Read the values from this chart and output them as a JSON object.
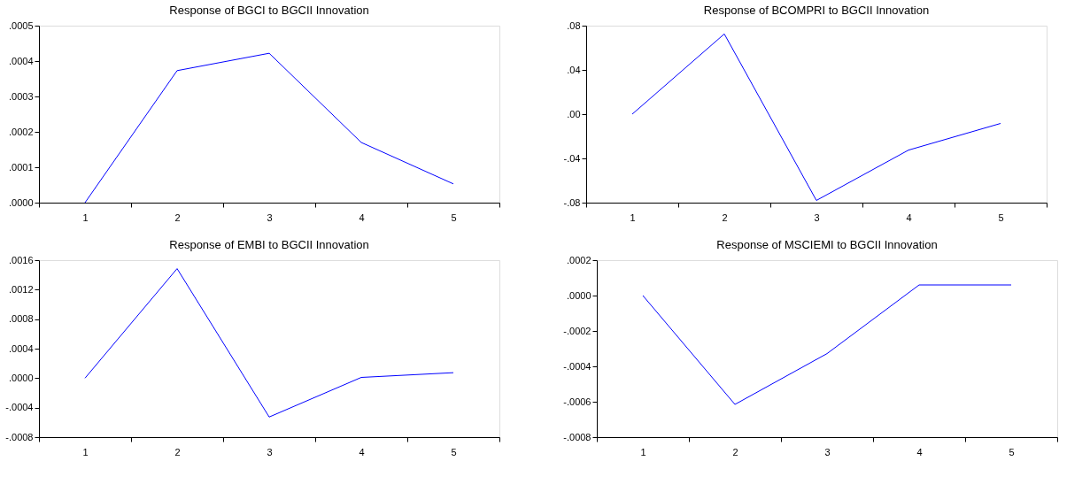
{
  "chart_data": [
    {
      "type": "line",
      "title": "Response of BGCI to BGCII Innovation",
      "categories": [
        "1",
        "2",
        "3",
        "4",
        "5"
      ],
      "series": [
        {
          "color": "#0000ff",
          "values": [
            0.0,
            0.000373,
            0.000422,
            0.00017,
            5.3e-05
          ]
        }
      ],
      "ylim": [
        0,
        0.0005
      ],
      "yticks": [
        {
          "value": 0,
          "label": ".0000"
        },
        {
          "value": 0.0001,
          "label": ".0001"
        },
        {
          "value": 0.0002,
          "label": ".0002"
        },
        {
          "value": 0.0003,
          "label": ".0003"
        },
        {
          "value": 0.0004,
          "label": ".0004"
        },
        {
          "value": 0.0005,
          "label": ".0005"
        }
      ],
      "grid": false,
      "legend": false,
      "marker": "none",
      "line_style": "solid"
    },
    {
      "type": "line",
      "title": "Response of BCOMPRI to BGCII Innovation",
      "categories": [
        "1",
        "2",
        "3",
        "4",
        "5"
      ],
      "series": [
        {
          "color": "#0000ff",
          "values": [
            0.0,
            0.0725,
            -0.078,
            -0.0325,
            -0.0084
          ]
        }
      ],
      "ylim": [
        -0.08,
        0.08
      ],
      "yticks": [
        {
          "value": -0.08,
          "label": "-.08"
        },
        {
          "value": -0.04,
          "label": "-.04"
        },
        {
          "value": 0,
          "label": ".00"
        },
        {
          "value": 0.04,
          "label": ".04"
        },
        {
          "value": 0.08,
          "label": ".08"
        }
      ],
      "grid": false,
      "legend": false,
      "marker": "none",
      "line_style": "solid"
    },
    {
      "type": "line",
      "title": "Response of EMBI to BGCII Innovation",
      "categories": [
        "1",
        "2",
        "3",
        "4",
        "5"
      ],
      "series": [
        {
          "color": "#0000ff",
          "values": [
            0.0,
            0.001485,
            -0.000527,
            1e-05,
            7.4e-05
          ]
        }
      ],
      "ylim": [
        -0.0008,
        0.0016
      ],
      "yticks": [
        {
          "value": -0.0008,
          "label": "-.0008"
        },
        {
          "value": -0.0004,
          "label": "-.0004"
        },
        {
          "value": 0,
          "label": ".0000"
        },
        {
          "value": 0.0004,
          "label": ".0004"
        },
        {
          "value": 0.0008,
          "label": ".0008"
        },
        {
          "value": 0.0012,
          "label": ".0012"
        },
        {
          "value": 0.0016,
          "label": ".0016"
        }
      ],
      "grid": false,
      "legend": false,
      "marker": "none",
      "line_style": "solid"
    },
    {
      "type": "line",
      "title": "Response of MSCIEMI to BGCII Innovation",
      "categories": [
        "1",
        "2",
        "3",
        "4",
        "5"
      ],
      "series": [
        {
          "color": "#0000ff",
          "values": [
            0.0,
            -0.000615,
            -0.000328,
            6e-05,
            6e-05
          ]
        }
      ],
      "ylim": [
        -0.0008,
        0.0002
      ],
      "yticks": [
        {
          "value": -0.0008,
          "label": "-.0008"
        },
        {
          "value": -0.0006,
          "label": "-.0006"
        },
        {
          "value": -0.0004,
          "label": "-.0004"
        },
        {
          "value": -0.0002,
          "label": "-.0002"
        },
        {
          "value": 0,
          "label": ".0000"
        },
        {
          "value": 0.0002,
          "label": ".0002"
        }
      ],
      "grid": false,
      "legend": false,
      "marker": "none",
      "line_style": "solid"
    }
  ]
}
